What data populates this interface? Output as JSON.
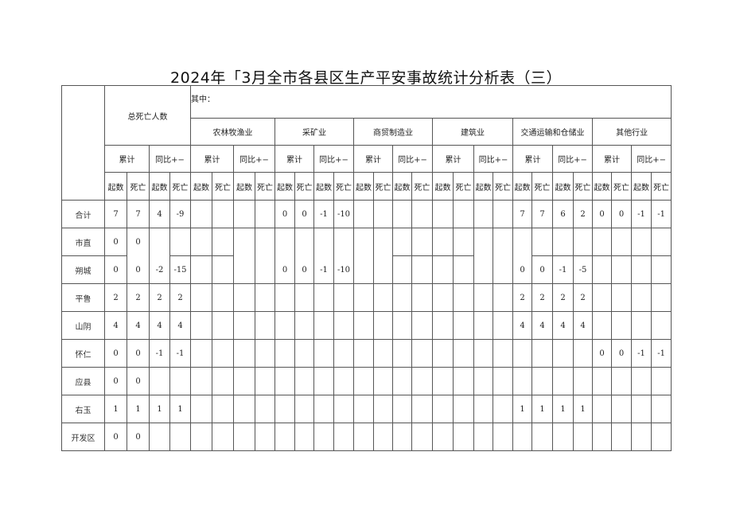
{
  "title": "2024年「3月全市各县区生产平安事故统计分析表（三）",
  "header": {
    "total": "总死亡人数",
    "of_which": "其中：",
    "industries": [
      "农林牧渔业",
      "采矿业",
      "商贸制造业",
      "建筑业",
      "交通运输和仓储业",
      "其他行业"
    ],
    "cumulative": "累计",
    "yoy": "同比+−",
    "count": "起数",
    "deaths": "死亡"
  },
  "rows": [
    {
      "label": "合计",
      "values": [
        "7",
        "7",
        "4",
        "-9",
        "",
        "",
        "",
        "",
        "0",
        "0",
        "-1",
        "-10",
        "",
        "",
        "",
        "",
        "",
        "",
        "",
        "",
        "7",
        "7",
        "6",
        "2",
        "0",
        "0",
        "-1",
        "-1"
      ]
    },
    {
      "label": "市直",
      "values": [
        "0",
        "0",
        "",
        "",
        "",
        "",
        "",
        "",
        "",
        "",
        "",
        "",
        "",
        "",
        "",
        "",
        "",
        "",
        "",
        "",
        "",
        "",
        "",
        "",
        "",
        "",
        "",
        ""
      ]
    },
    {
      "label": "朔城",
      "values": [
        "0",
        "0",
        "-2",
        "-15",
        "",
        "",
        "",
        "",
        "0",
        "0",
        "-1",
        "-10",
        "",
        "",
        "",
        "",
        "",
        "",
        "",
        "",
        "0",
        "0",
        "-1",
        "-5",
        "",
        "",
        "",
        ""
      ]
    },
    {
      "label": "平鲁",
      "values": [
        "2",
        "2",
        "2",
        "2",
        "",
        "",
        "",
        "",
        "",
        "",
        "",
        "",
        "",
        "",
        "",
        "",
        "",
        "",
        "",
        "",
        "2",
        "2",
        "2",
        "2",
        "",
        "",
        "",
        ""
      ]
    },
    {
      "label": "山阴",
      "values": [
        "4",
        "4",
        "4",
        "4",
        "",
        "",
        "",
        "",
        "",
        "",
        "",
        "",
        "",
        "",
        "",
        "",
        "",
        "",
        "",
        "",
        "4",
        "4",
        "4",
        "4",
        "",
        "",
        "",
        ""
      ]
    },
    {
      "label": "怀仁",
      "values": [
        "0",
        "0",
        "-1",
        "-1",
        "",
        "",
        "",
        "",
        "",
        "",
        "",
        "",
        "",
        "",
        "",
        "",
        "",
        "",
        "",
        "",
        "",
        "",
        "",
        "",
        "0",
        "0",
        "-1",
        "-1"
      ]
    },
    {
      "label": "应县",
      "values": [
        "0",
        "0",
        "",
        "",
        "",
        "",
        "",
        "",
        "",
        "",
        "",
        "",
        "",
        "",
        "",
        "",
        "",
        "",
        "",
        "",
        "",
        "",
        "",
        "",
        "",
        "",
        "",
        ""
      ]
    },
    {
      "label": "右玉",
      "values": [
        "1",
        "1",
        "1",
        "1",
        "",
        "",
        "",
        "",
        "",
        "",
        "",
        "",
        "",
        "",
        "",
        "",
        "",
        "",
        "",
        "",
        "1",
        "1",
        "1",
        "1",
        "",
        "",
        "",
        ""
      ]
    },
    {
      "label": "开发区",
      "values": [
        "0",
        "0",
        "",
        "",
        "",
        "",
        "",
        "",
        "",
        "",
        "",
        "",
        "",
        "",
        "",
        "",
        "",
        "",
        "",
        "",
        "",
        "",
        "",
        "",
        "",
        "",
        "",
        ""
      ]
    }
  ]
}
